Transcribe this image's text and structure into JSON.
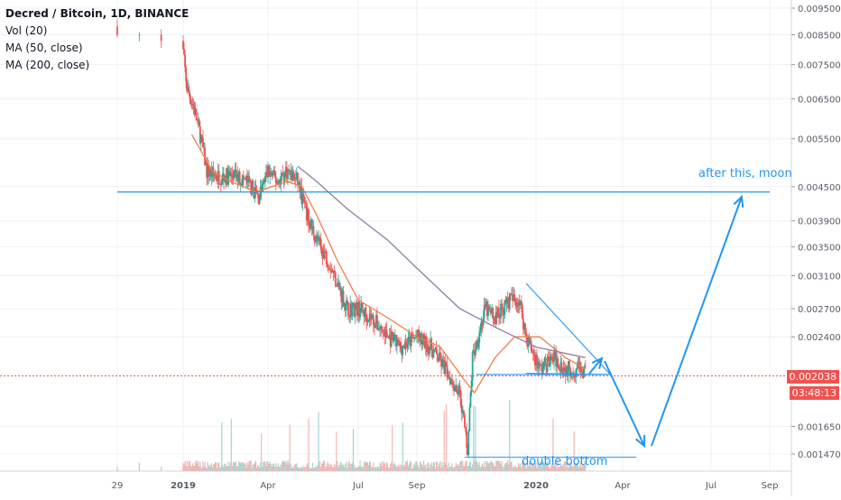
{
  "header": {
    "symbol_line": "Decred / Bitcoin, 1D, BINANCE",
    "indicators": [
      "Vol (20)",
      "MA (50, close)",
      "MA (200, close)"
    ]
  },
  "price_axis": {
    "labels": [
      "0.009500",
      "0.008500",
      "0.007500",
      "0.006500",
      "0.005500",
      "0.004500",
      "0.003900",
      "0.003500",
      "0.003100",
      "0.002700",
      "0.002400",
      "0.001650",
      "0.001470"
    ]
  },
  "time_axis": {
    "labels": [
      "29",
      "2019",
      "Apr",
      "Jul",
      "Sep",
      "2020",
      "Apr",
      "Jul",
      "Sep"
    ]
  },
  "price_tags": {
    "last_price": "0.002038",
    "countdown": "03:48:13"
  },
  "annotations": {
    "moon_text": "after this, moon",
    "double_bottom_text": "double bottom"
  },
  "colors": {
    "up": "#26a69a",
    "down": "#ef5350",
    "ma50": "#f57c45",
    "ma200": "#8e7fa6",
    "drawing": "#2196f3",
    "last_price_line": "#ef5350",
    "grid": "#eef1f5",
    "axis_text": "#555b66"
  },
  "chart_data": {
    "type": "candlestick",
    "title": "Decred / Bitcoin, 1D, BINANCE",
    "x_range": [
      "2018-12-29",
      "2020-09-15"
    ],
    "y_scale": "log",
    "y_ticks": [
      0.0095,
      0.0085,
      0.0075,
      0.0065,
      0.0055,
      0.0045,
      0.0039,
      0.0035,
      0.0031,
      0.0027,
      0.0024,
      0.00165,
      0.00147
    ],
    "price_path": [
      [
        "2018-12-29",
        0.0088
      ],
      [
        "2019-01-05",
        0.0068
      ],
      [
        "2019-01-12",
        0.0063
      ],
      [
        "2019-01-20",
        0.0055
      ],
      [
        "2019-01-26",
        0.0048
      ],
      [
        "2019-02-05",
        0.0047
      ],
      [
        "2019-02-15",
        0.0047
      ],
      [
        "2019-02-25",
        0.0047
      ],
      [
        "2019-03-10",
        0.0046
      ],
      [
        "2019-03-22",
        0.0043
      ],
      [
        "2019-04-01",
        0.0048
      ],
      [
        "2019-04-10",
        0.0046
      ],
      [
        "2019-04-20",
        0.0048
      ],
      [
        "2019-05-01",
        0.0046
      ],
      [
        "2019-05-10",
        0.004
      ],
      [
        "2019-05-20",
        0.0036
      ],
      [
        "2019-06-01",
        0.0033
      ],
      [
        "2019-06-10",
        0.003
      ],
      [
        "2019-06-20",
        0.0027
      ],
      [
        "2019-07-01",
        0.0027
      ],
      [
        "2019-07-15",
        0.0026
      ],
      [
        "2019-08-01",
        0.0024
      ],
      [
        "2019-08-15",
        0.0023
      ],
      [
        "2019-09-01",
        0.0024
      ],
      [
        "2019-09-15",
        0.0023
      ],
      [
        "2019-09-30",
        0.0021
      ],
      [
        "2019-10-15",
        0.0019
      ],
      [
        "2019-10-23",
        0.0015
      ],
      [
        "2019-10-28",
        0.0022
      ],
      [
        "2019-11-10",
        0.0027
      ],
      [
        "2019-11-20",
        0.0026
      ],
      [
        "2019-12-05",
        0.0028
      ],
      [
        "2019-12-15",
        0.0028
      ],
      [
        "2019-12-22",
        0.0024
      ],
      [
        "2020-01-05",
        0.0021
      ],
      [
        "2020-01-20",
        0.0022
      ],
      [
        "2020-02-01",
        0.0021
      ],
      [
        "2020-02-15",
        0.0021
      ],
      [
        "2020-02-22",
        0.00205
      ]
    ],
    "ma50_path": [
      [
        "2019-01-10",
        0.0056
      ],
      [
        "2019-02-01",
        0.0048
      ],
      [
        "2019-02-20",
        0.0046
      ],
      [
        "2019-03-20",
        0.0044
      ],
      [
        "2019-04-20",
        0.0046
      ],
      [
        "2019-05-05",
        0.0045
      ],
      [
        "2019-05-20",
        0.004
      ],
      [
        "2019-06-10",
        0.0033
      ],
      [
        "2019-07-01",
        0.0028
      ],
      [
        "2019-08-01",
        0.0026
      ],
      [
        "2019-09-01",
        0.0024
      ],
      [
        "2019-09-25",
        0.0023
      ],
      [
        "2019-10-20",
        0.002
      ],
      [
        "2019-10-30",
        0.0019
      ],
      [
        "2019-11-20",
        0.0022
      ],
      [
        "2019-12-10",
        0.0024
      ],
      [
        "2020-01-05",
        0.0024
      ],
      [
        "2020-02-01",
        0.0022
      ],
      [
        "2020-02-22",
        0.0021
      ]
    ],
    "ma200_path": [
      [
        "2019-05-01",
        0.0049
      ],
      [
        "2019-05-20",
        0.0046
      ],
      [
        "2019-06-20",
        0.0041
      ],
      [
        "2019-08-01",
        0.0036
      ],
      [
        "2019-09-01",
        0.0032
      ],
      [
        "2019-10-15",
        0.0027
      ],
      [
        "2019-11-20",
        0.0025
      ],
      [
        "2020-01-01",
        0.0023
      ],
      [
        "2020-02-22",
        0.0022
      ]
    ],
    "last_price": 0.002038,
    "annotations": [
      {
        "type": "hline",
        "price": 0.0044,
        "from": "2018-12-29",
        "to": "2020-09-01"
      },
      {
        "type": "polyline",
        "name": "triangle",
        "points": [
          [
            "2019-12-22",
            0.003
          ],
          [
            "2020-03-05",
            0.0021
          ],
          [
            "2019-12-22",
            0.00206
          ]
        ]
      },
      {
        "type": "hline",
        "price": 0.00205,
        "from": "2019-11-01",
        "to": "2020-03-20"
      },
      {
        "type": "hline",
        "price": 0.00145,
        "from": "2019-10-20",
        "to": "2020-04-15"
      },
      {
        "type": "arrow_path",
        "points": [
          [
            "2020-02-12",
            0.0021
          ],
          [
            "2020-02-22",
            0.0022
          ]
        ]
      },
      {
        "type": "arrow_path",
        "points": [
          [
            "2020-02-22",
            0.002
          ],
          [
            "2020-04-10",
            0.00145
          ]
        ]
      },
      {
        "type": "arrow_path",
        "points": [
          [
            "2020-04-12",
            0.00145
          ],
          [
            "2020-08-25",
            0.0043
          ]
        ]
      }
    ]
  }
}
